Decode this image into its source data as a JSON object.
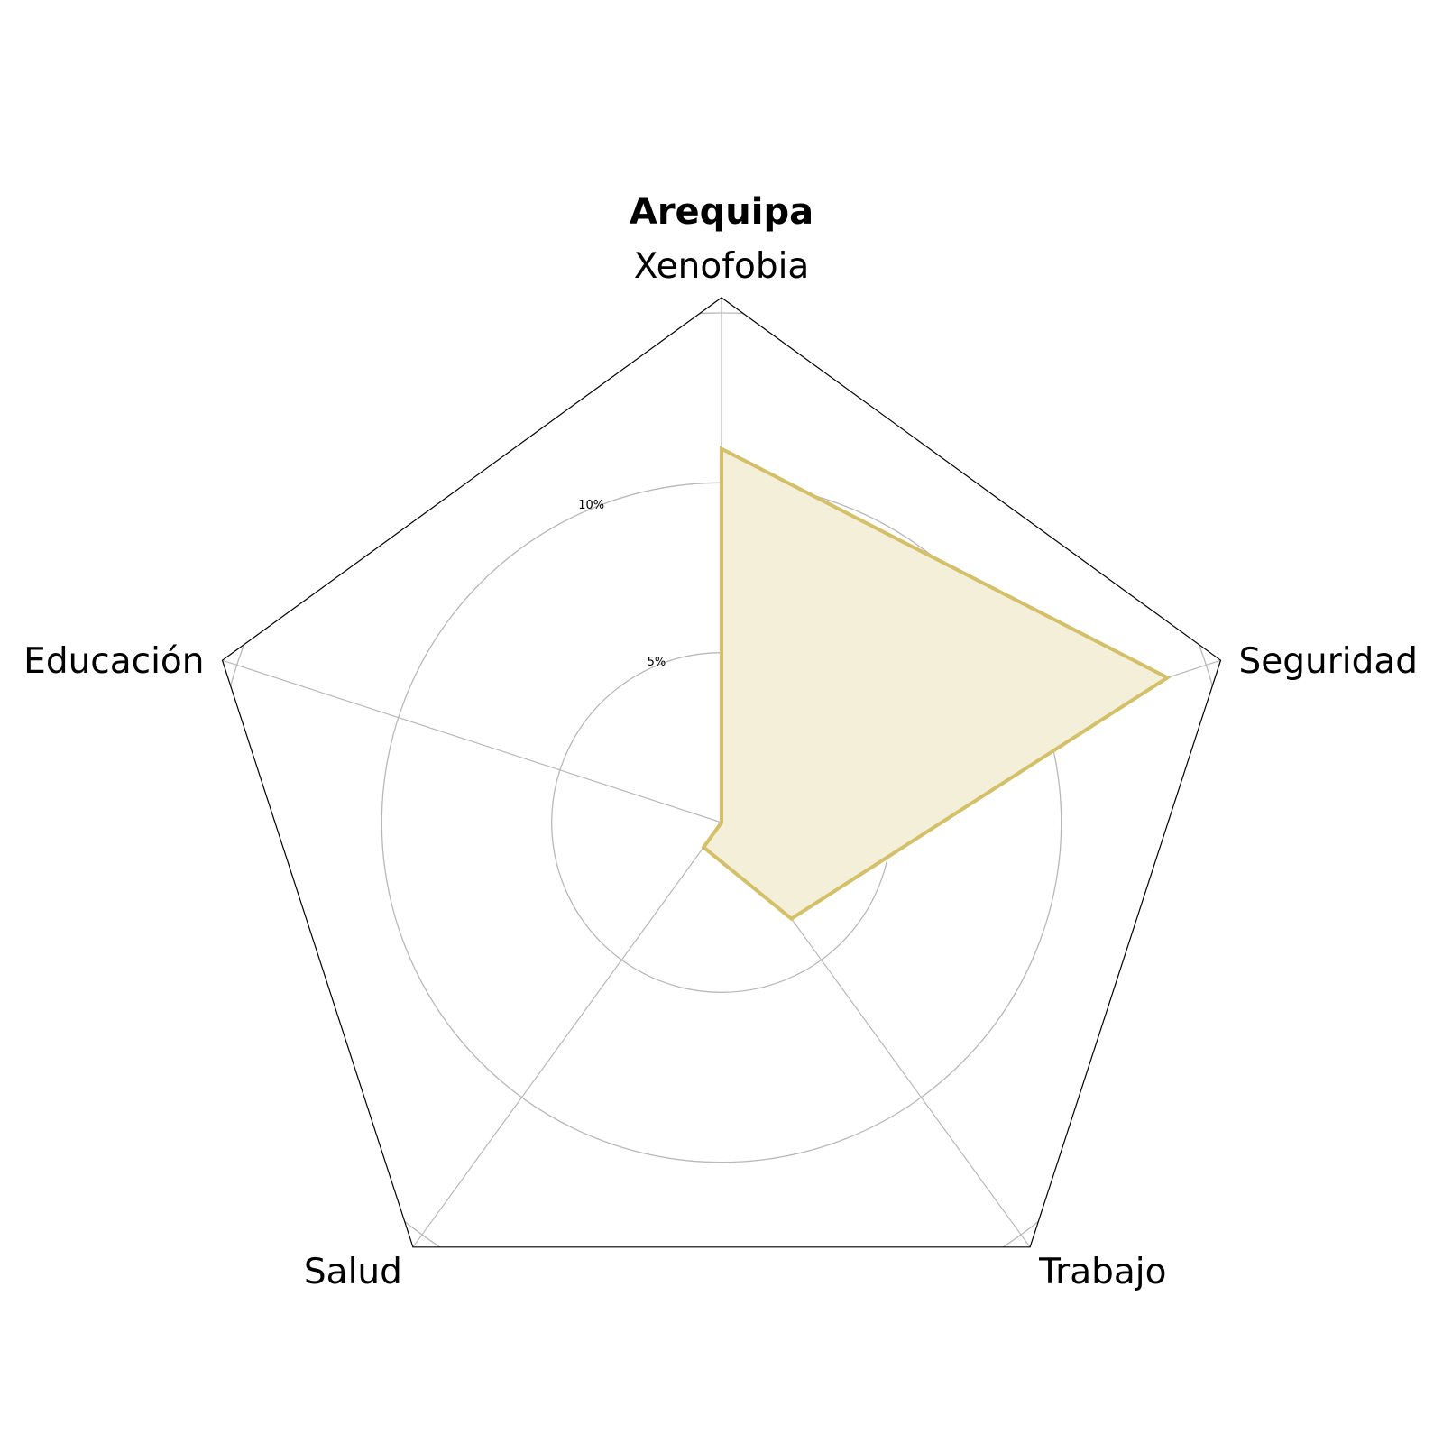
{
  "chart_data": {
    "type": "radar",
    "title": "Arequipa",
    "categories": [
      "Xenofobia",
      "Seguridad",
      "Trabajo",
      "Salud",
      "Educación"
    ],
    "series": [
      {
        "values": [
          11.0,
          13.8,
          3.5,
          0.9,
          0.0
        ]
      }
    ],
    "rlim": [
      0,
      15.45
    ],
    "rticks": [
      {
        "value": 5,
        "label": "5%"
      },
      {
        "value": 10,
        "label": "10%"
      }
    ],
    "grid": true,
    "colors": {
      "series_line": "#d4c068",
      "series_fill": "#f3efd8",
      "grid": "#b8b8b8",
      "frame": "#000000"
    }
  }
}
